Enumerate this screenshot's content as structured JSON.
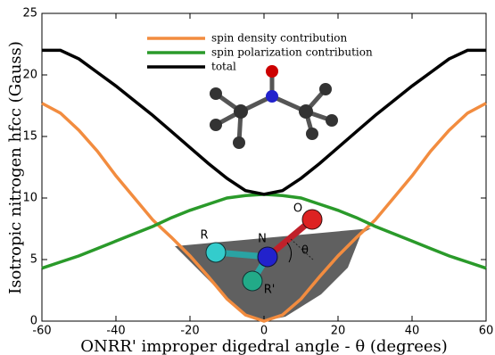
{
  "chart_data": {
    "type": "line",
    "x_label": "ONRR' improper digedral angle - θ (degrees)",
    "y_label": "Isotropic nitrogen hfcc (Gauss)",
    "x": [
      -60,
      -55,
      -50,
      -45,
      -40,
      -35,
      -30,
      -25,
      -20,
      -15,
      -10,
      -5,
      0,
      5,
      10,
      15,
      20,
      25,
      30,
      35,
      40,
      45,
      50,
      55,
      60
    ],
    "series": [
      {
        "name": "spin density contribution",
        "color": "#f28c3f",
        "values": [
          17.7,
          16.9,
          15.5,
          13.8,
          11.8,
          10.0,
          8.2,
          6.8,
          5.3,
          3.6,
          1.8,
          0.5,
          0,
          0.5,
          1.8,
          3.6,
          5.3,
          6.8,
          8.2,
          10.0,
          11.8,
          13.8,
          15.5,
          16.9,
          17.7
        ]
      },
      {
        "name": "spin polarization contribution",
        "color": "#2a9a2a",
        "values": [
          4.3,
          4.8,
          5.3,
          5.9,
          6.5,
          7.1,
          7.7,
          8.4,
          9.0,
          9.5,
          10.0,
          10.2,
          10.3,
          10.2,
          10.0,
          9.5,
          9.0,
          8.4,
          7.7,
          7.1,
          6.5,
          5.9,
          5.3,
          4.8,
          4.3
        ]
      },
      {
        "name": "total",
        "color": "#000000",
        "values": [
          22,
          22,
          21.3,
          20.2,
          19.1,
          17.9,
          16.7,
          15.4,
          14.1,
          12.8,
          11.6,
          10.6,
          10.3,
          10.6,
          11.6,
          12.8,
          14.1,
          15.4,
          16.7,
          17.9,
          19.1,
          20.2,
          21.3,
          22,
          22
        ]
      }
    ],
    "xlim": [
      -60,
      60
    ],
    "xticks": [
      -60,
      -40,
      -20,
      0,
      20,
      40,
      60
    ],
    "ylim": [
      0,
      25
    ],
    "yticks": [
      0,
      5,
      10,
      15,
      20,
      25
    ],
    "legend": "upper center",
    "annotations": [
      "R",
      "N",
      "O",
      "R'",
      "θ"
    ]
  }
}
